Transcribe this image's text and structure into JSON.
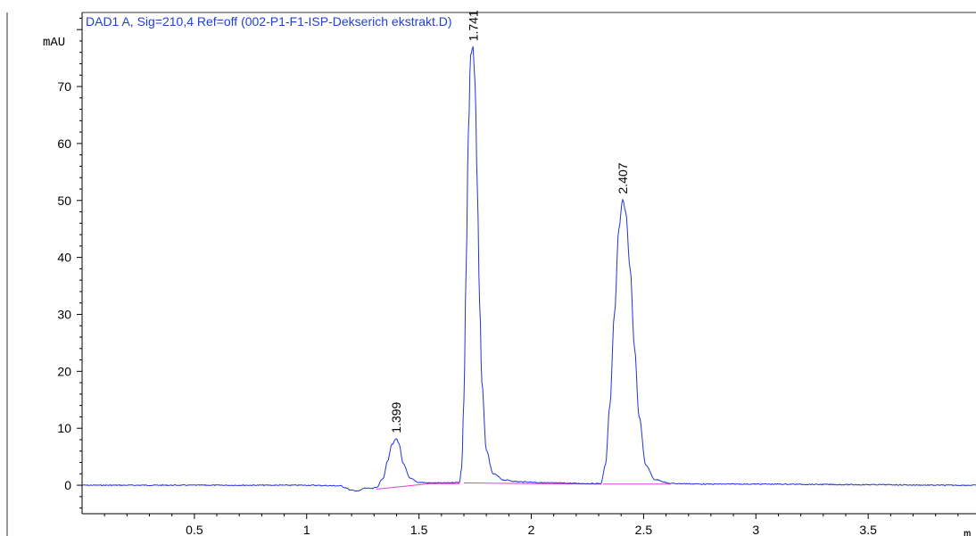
{
  "chart_data": {
    "type": "line",
    "title": "DAD1 A, Sig=210,4 Ref=off (002-P1-F1-ISP-Dekserich ekstrakt.D)",
    "ylabel": "mAU",
    "xlabel": "m",
    "xlim": [
      0,
      3.98
    ],
    "ylim": [
      -5,
      83
    ],
    "x_ticks": [
      0.5,
      1,
      1.5,
      2,
      2.5,
      3,
      3.5
    ],
    "x_tick_labels": [
      "0.5",
      "1",
      "1.5",
      "2",
      "2.5",
      "3",
      "3.5"
    ],
    "y_ticks": [
      0,
      10,
      20,
      30,
      40,
      50,
      60,
      70
    ],
    "y_tick_labels": [
      "0",
      "10",
      "20",
      "30",
      "40",
      "50",
      "60",
      "70"
    ],
    "colors": {
      "signal": "#2233dd",
      "baseline": "#e040d0",
      "title": "#1f3fd6"
    },
    "baseline_segments": [
      {
        "x": [
          1.31,
          1.55,
          1.68
        ],
        "y": [
          -0.7,
          0.3,
          0.3
        ]
      },
      {
        "x": [
          1.7,
          2.0,
          2.31
        ],
        "y": [
          0.4,
          0.3,
          0.2
        ]
      },
      {
        "x": [
          2.32,
          2.62
        ],
        "y": [
          0.2,
          0.2
        ]
      }
    ],
    "series": [
      {
        "x": [
          0,
          0.5,
          1.0,
          1.15,
          1.17,
          1.2,
          1.23,
          1.26,
          1.29,
          1.31,
          1.34,
          1.36,
          1.38,
          1.399,
          1.41,
          1.43,
          1.46,
          1.5,
          1.55,
          1.6,
          1.68,
          1.69,
          1.7,
          1.71,
          1.72,
          1.73,
          1.741,
          1.75,
          1.76,
          1.77,
          1.78,
          1.8,
          1.83,
          1.88,
          1.95,
          2.1,
          2.25,
          2.31,
          2.33,
          2.35,
          2.37,
          2.39,
          2.407,
          2.42,
          2.44,
          2.46,
          2.48,
          2.51,
          2.55,
          2.62,
          2.8,
          3.0,
          3.5,
          3.85,
          3.98
        ],
        "y": [
          0,
          0,
          0,
          -0.1,
          -0.4,
          -0.9,
          -1.0,
          -0.5,
          -0.6,
          -0.4,
          1.2,
          4.2,
          7.2,
          8.2,
          7.3,
          3.8,
          1.2,
          0.5,
          0.4,
          0.4,
          0.5,
          3.0,
          15.0,
          38.0,
          62.0,
          75.5,
          77.0,
          70.0,
          52.0,
          32.0,
          18.0,
          6.0,
          2.0,
          0.9,
          0.6,
          0.4,
          0.3,
          0.3,
          3.5,
          14.0,
          30.0,
          45.0,
          50.2,
          48.0,
          38.0,
          24.0,
          12.0,
          3.5,
          1.0,
          0.3,
          0.2,
          0.2,
          0.1,
          0.0,
          0.0
        ]
      }
    ],
    "peak_labels": [
      {
        "label": "1.399",
        "x": 1.399,
        "y": 8.2
      },
      {
        "label": "1.741",
        "x": 1.741,
        "y": 77.0
      },
      {
        "label": "2.407",
        "x": 2.407,
        "y": 50.2
      }
    ]
  }
}
